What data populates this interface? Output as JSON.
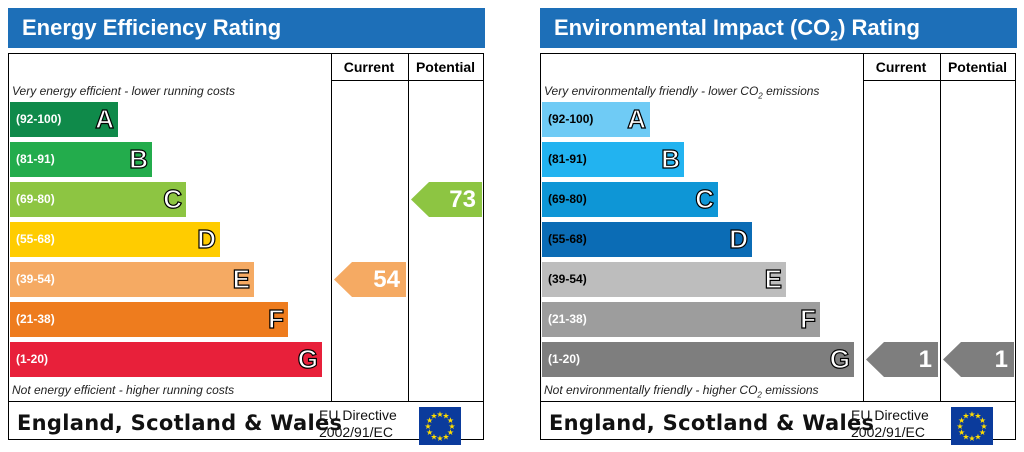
{
  "chart_data": [
    {
      "type": "bar",
      "title": "Energy Efficiency Rating",
      "columns": [
        "Current",
        "Potential"
      ],
      "top_caption": "Very energy efficient - lower running costs",
      "bottom_caption": "Not energy efficient - higher running costs",
      "bands": [
        {
          "range": "(92-100)",
          "letter": "A",
          "color": "#0f8a4a"
        },
        {
          "range": "(81-91)",
          "letter": "B",
          "color": "#23ac4c"
        },
        {
          "range": "(69-80)",
          "letter": "C",
          "color": "#8dc542"
        },
        {
          "range": "(55-68)",
          "letter": "D",
          "color": "#ffcc00"
        },
        {
          "range": "(39-54)",
          "letter": "E",
          "color": "#f5aa63"
        },
        {
          "range": "(21-38)",
          "letter": "F",
          "color": "#ee7c1e"
        },
        {
          "range": "(1-20)",
          "letter": "G",
          "color": "#e8203a"
        }
      ],
      "current": {
        "value": "54",
        "band": "E",
        "color": "#f5aa63"
      },
      "potential": {
        "value": "73",
        "band": "C",
        "color": "#8dc542"
      },
      "footer_country": "England, Scotland & Wales",
      "footer_directive_1": "EU Directive",
      "footer_directive_2": "2002/91/EC"
    },
    {
      "type": "bar",
      "title_prefix": "Environmental Impact (CO",
      "title_sub": "2",
      "title_suffix": ") Rating",
      "columns": [
        "Current",
        "Potential"
      ],
      "top_caption_prefix": "Very environmentally friendly - lower CO",
      "top_caption_sub": "2",
      "top_caption_suffix": " emissions",
      "bottom_caption_prefix": "Not environmentally friendly - higher CO",
      "bottom_caption_sub": "2",
      "bottom_caption_suffix": " emissions",
      "bands": [
        {
          "range": "(92-100)",
          "letter": "A",
          "color": "#6fcbf5",
          "range_color": "#000000"
        },
        {
          "range": "(81-91)",
          "letter": "B",
          "color": "#22b3f0",
          "range_color": "#000000"
        },
        {
          "range": "(69-80)",
          "letter": "C",
          "color": "#0e96d6",
          "range_color": "#000000"
        },
        {
          "range": "(55-68)",
          "letter": "D",
          "color": "#0b6cb5",
          "range_color": "#000000"
        },
        {
          "range": "(39-54)",
          "letter": "E",
          "color": "#bdbdbd",
          "range_color": "#000000"
        },
        {
          "range": "(21-38)",
          "letter": "F",
          "color": "#9d9d9d",
          "range_color": "#ffffff"
        },
        {
          "range": "(1-20)",
          "letter": "G",
          "color": "#7e7e7e",
          "range_color": "#ffffff"
        }
      ],
      "current": {
        "value": "1",
        "band": "G",
        "color": "#7e7e7e"
      },
      "potential": {
        "value": "1",
        "band": "G",
        "color": "#7e7e7e"
      },
      "footer_country": "England, Scotland & Wales",
      "footer_directive_1": "EU Directive",
      "footer_directive_2": "2002/91/EC"
    }
  ]
}
